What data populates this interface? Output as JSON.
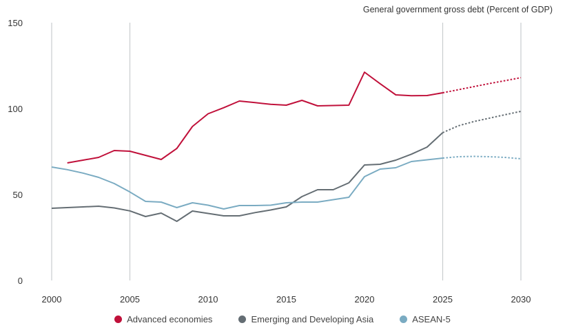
{
  "chart_data": {
    "type": "line",
    "title": "General government gross debt (Percent of GDP)",
    "xlabel": "",
    "ylabel": "",
    "xlim": [
      2000,
      2030
    ],
    "ylim": [
      0,
      150
    ],
    "x_ticks": [
      "2000",
      "2005",
      "2010",
      "2015",
      "2020",
      "2025",
      "2030"
    ],
    "y_ticks": [
      "0",
      "50",
      "100",
      "150"
    ],
    "vertical_gridlines": [
      2000,
      2005,
      2025,
      2030
    ],
    "projection_start": 2025,
    "legend_position": "bottom",
    "series": [
      {
        "name": "Advanced economies",
        "color": "#c0103a",
        "x": [
          2001,
          2002,
          2003,
          2004,
          2005,
          2006,
          2007,
          2008,
          2009,
          2010,
          2011,
          2012,
          2013,
          2014,
          2015,
          2016,
          2017,
          2018,
          2019,
          2020,
          2021,
          2022,
          2023,
          2024,
          2025,
          2026,
          2027,
          2028,
          2029,
          2030
        ],
        "y": [
          68.4,
          70,
          71.6,
          75.6,
          75.2,
          72.8,
          70.4,
          76.8,
          89.6,
          97,
          100.5,
          104.4,
          103.5,
          102.5,
          102,
          104.8,
          101.6,
          101.8,
          102,
          121.2,
          114.5,
          108,
          107.5,
          107.6,
          109.2,
          111,
          112.8,
          114.6,
          116.3,
          118
        ]
      },
      {
        "name": "Emerging and Developing Asia",
        "color": "#646d73",
        "x": [
          2000,
          2001,
          2002,
          2003,
          2004,
          2005,
          2006,
          2007,
          2008,
          2009,
          2010,
          2011,
          2012,
          2013,
          2014,
          2015,
          2016,
          2017,
          2018,
          2019,
          2020,
          2021,
          2022,
          2023,
          2024,
          2025,
          2026,
          2027,
          2028,
          2029,
          2030
        ],
        "y": [
          42,
          42.4,
          42.8,
          43.2,
          42.2,
          40.5,
          37.2,
          39.2,
          34.4,
          40.4,
          39,
          37.6,
          37.6,
          39.5,
          41,
          42.8,
          48.8,
          52.8,
          52.8,
          56.8,
          67.2,
          67.6,
          70,
          73.5,
          77.6,
          86,
          90,
          92.5,
          94.5,
          96.5,
          98.4
        ]
      },
      {
        "name": "ASEAN-5",
        "color": "#7aabc2",
        "x": [
          2000,
          2001,
          2002,
          2003,
          2004,
          2005,
          2006,
          2007,
          2008,
          2009,
          2010,
          2011,
          2012,
          2013,
          2014,
          2015,
          2016,
          2017,
          2018,
          2019,
          2020,
          2021,
          2022,
          2023,
          2024,
          2025,
          2026,
          2027,
          2028,
          2029,
          2030
        ],
        "y": [
          66,
          64.5,
          62.5,
          60,
          56.4,
          51.5,
          46,
          45.6,
          42.4,
          45.2,
          43.8,
          41.6,
          43.6,
          43.6,
          43.8,
          45.2,
          45.6,
          45.6,
          47,
          48.4,
          60.4,
          64.8,
          65.6,
          69.2,
          70.2,
          71.2,
          72,
          72.2,
          72,
          71.6,
          70.8
        ]
      }
    ]
  }
}
